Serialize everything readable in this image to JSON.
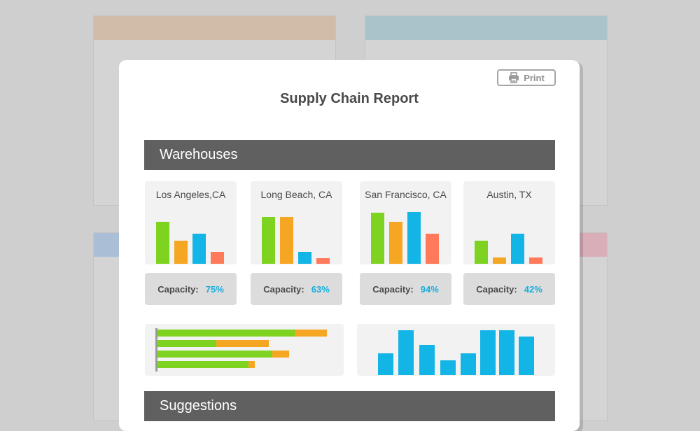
{
  "report": {
    "title": "Supply Chain Report",
    "print_label": "Print",
    "print_icon": "printer-icon"
  },
  "sections": {
    "warehouses": "Warehouses",
    "suggestions": "Suggestions"
  },
  "colors": {
    "green": "#7ed321",
    "orange": "#f5a623",
    "blue": "#12b5e5",
    "salmon": "#ff7a5a",
    "section_bar": "#606060",
    "capacity_value": "#1aaedc"
  },
  "warehouses": [
    {
      "name": "Los Angeles,CA",
      "capacity_label": "Capacity:",
      "capacity": "75%",
      "bars": [
        60,
        33,
        43,
        17
      ]
    },
    {
      "name": "Long Beach, CA",
      "capacity_label": "Capacity:",
      "capacity": "63%",
      "bars": [
        67,
        67,
        17,
        8
      ]
    },
    {
      "name": "San Francisco, CA",
      "capacity_label": "Capacity:",
      "capacity": "94%",
      "bars": [
        73,
        60,
        74,
        43
      ]
    },
    {
      "name": "Austin, TX",
      "capacity_label": "Capacity:",
      "capacity": "42%",
      "bars": [
        33,
        9,
        43,
        9
      ]
    }
  ],
  "stacked_bars": [
    {
      "green": 196,
      "orange": 46
    },
    {
      "green": 84,
      "orange": 75
    },
    {
      "green": 164,
      "orange": 24
    },
    {
      "green": 130,
      "orange": 9
    }
  ],
  "column_bars": [
    31,
    64,
    43,
    21,
    31,
    64,
    64,
    55
  ]
}
